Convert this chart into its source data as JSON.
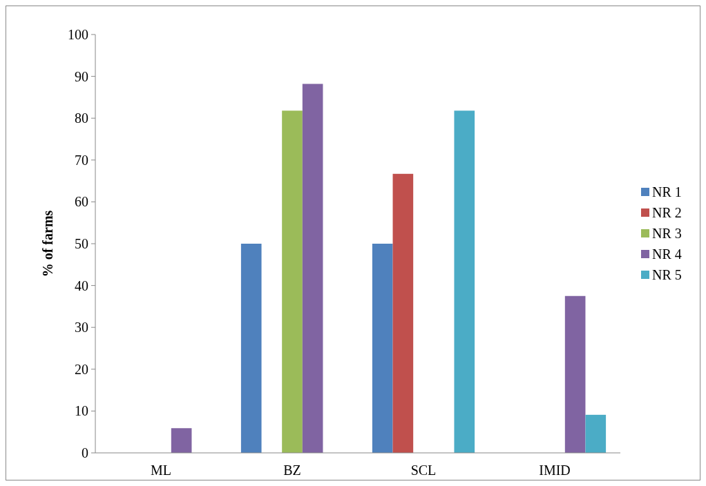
{
  "chart_data": {
    "type": "bar",
    "ylabel": "%  of farms",
    "categories": [
      "ML",
      "BZ",
      "SCL",
      "IMID"
    ],
    "series": [
      {
        "name": "NR 1",
        "color": "#4f81bd",
        "values": [
          0,
          50,
          50,
          0
        ]
      },
      {
        "name": "NR 2",
        "color": "#c0504d",
        "values": [
          0,
          0,
          66.7,
          0
        ]
      },
      {
        "name": "NR 3",
        "color": "#9bbb59",
        "values": [
          0,
          81.8,
          0,
          0
        ]
      },
      {
        "name": "NR 4",
        "color": "#8064a2",
        "values": [
          5.9,
          88.2,
          0,
          37.5
        ]
      },
      {
        "name": "NR 5",
        "color": "#4bacc6",
        "values": [
          0,
          0,
          81.8,
          9.1
        ]
      }
    ],
    "ylim": [
      0,
      100
    ],
    "yticks": [
      0,
      10,
      20,
      30,
      40,
      50,
      60,
      70,
      80,
      90,
      100
    ],
    "grid": false,
    "legend": "right"
  }
}
